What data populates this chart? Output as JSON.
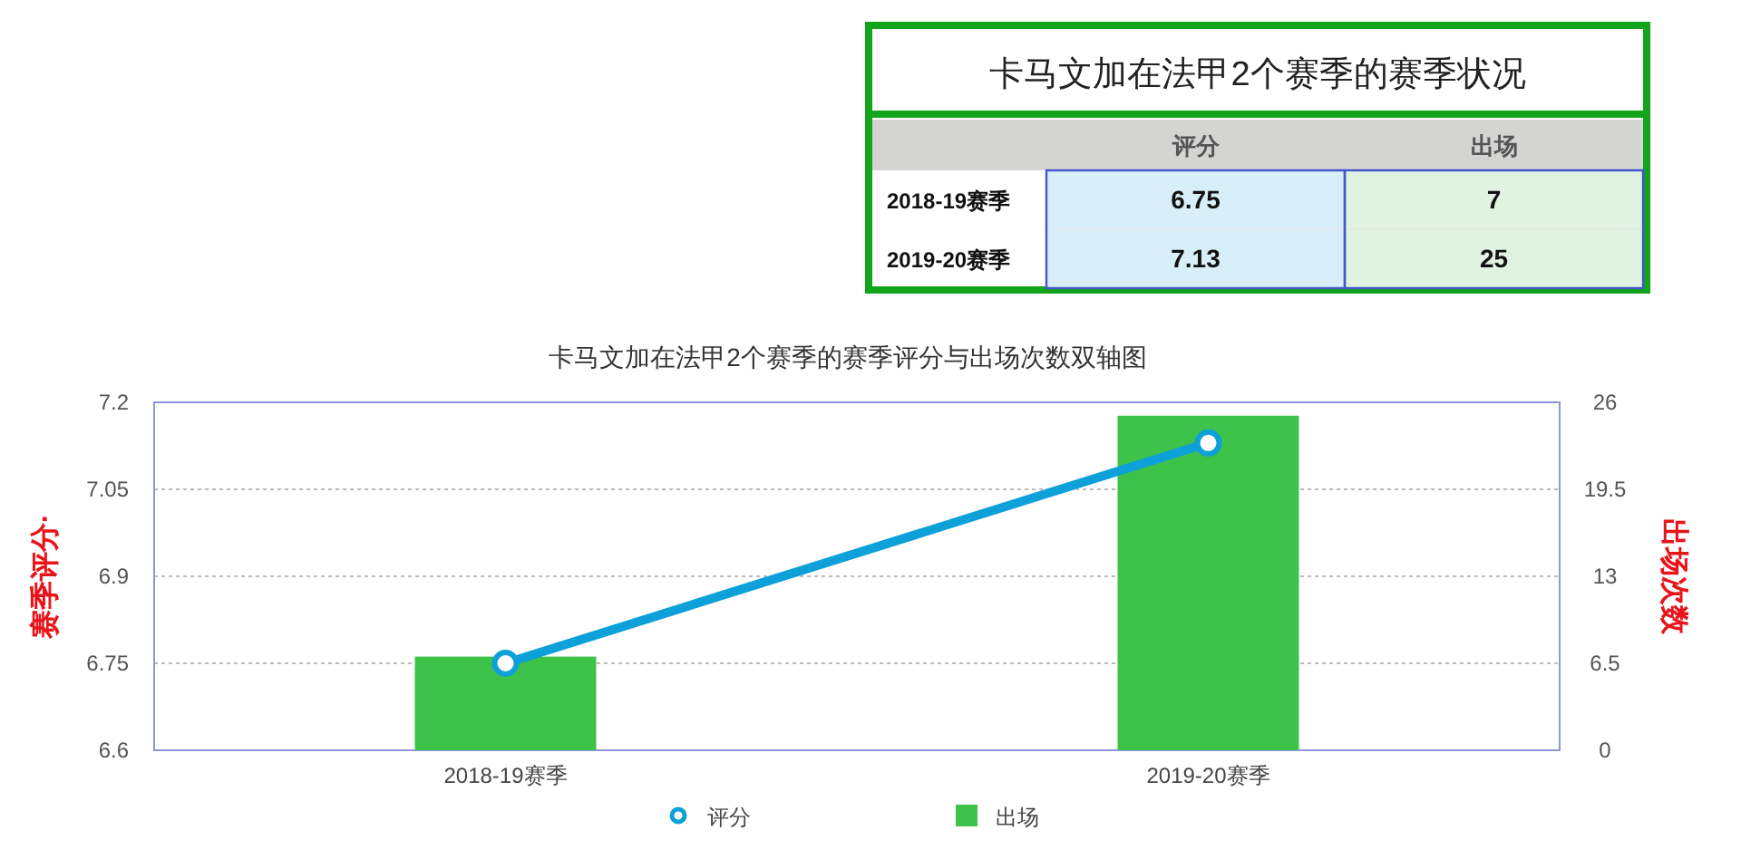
{
  "chart_data": [
    {
      "type": "heatmap",
      "title": "卡马文加在法甲2个赛季的赛季状况",
      "categories": [
        "评分",
        "出场"
      ],
      "y_categories": [
        "2018-19赛季",
        "2019-20赛季"
      ],
      "cells": [
        [
          6.75,
          7
        ],
        [
          7.13,
          25
        ]
      ],
      "data_labels": true
    },
    {
      "type": "bar",
      "title": "卡马文加在法甲2个赛季的赛季评分与出场次数双轴图",
      "ylabel": "赛季评分·",
      "y2label": "出场次数",
      "categories": [
        "2018-19赛季",
        "2019-20赛季"
      ],
      "series": [
        {
          "name": "评分",
          "type": "line",
          "color": "#0ea0d8",
          "values": [
            6.75,
            7.13
          ]
        },
        {
          "name": "出场",
          "type": "bar",
          "color": "#3dc24a",
          "values": [
            7,
            25
          ],
          "axis": "y2"
        }
      ],
      "ylim": [
        6.6,
        7.2
      ],
      "yticks": [
        6.6,
        6.75,
        6.9,
        7.05,
        7.2
      ],
      "y2lim": [
        0,
        26
      ],
      "y2ticks": [
        0,
        6.5,
        13,
        19.5,
        26
      ],
      "grid": "y",
      "legend": "bottom",
      "marker": "circle"
    }
  ]
}
